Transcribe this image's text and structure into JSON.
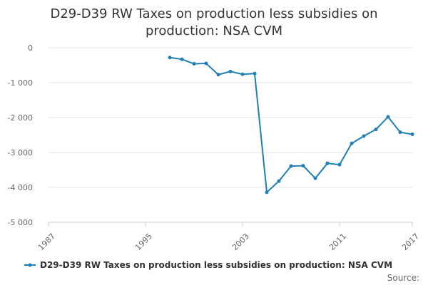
{
  "chart_data": {
    "type": "line",
    "title": "D29-D39 RW Taxes on production less subsidies on production: NSA CVM",
    "xlabel": "",
    "ylabel": "",
    "xlim": [
      1987,
      2017
    ],
    "ylim": [
      -5000,
      0
    ],
    "x_ticks": [
      "1987",
      "1995",
      "2003",
      "2011",
      "2017"
    ],
    "y_ticks": [
      "0",
      "-1 000",
      "-2 000",
      "-3 000",
      "-4 000",
      "-5 000"
    ],
    "y_tick_values": [
      0,
      -1000,
      -2000,
      -3000,
      -4000,
      -5000
    ],
    "x_tick_values": [
      1987,
      1995,
      2003,
      2011,
      2017
    ],
    "grid": true,
    "legend_position": "bottom",
    "series": [
      {
        "name": "D29-D39 RW Taxes on production less subsidies on production: NSA CVM",
        "color": "#1f7fb6",
        "x": [
          1997,
          1998,
          1999,
          2000,
          2001,
          2002,
          2003,
          2004,
          2005,
          2006,
          2007,
          2008,
          2009,
          2010,
          2011,
          2012,
          2013,
          2014,
          2015,
          2016,
          2017
        ],
        "values": [
          -280,
          -330,
          -460,
          -450,
          -770,
          -680,
          -760,
          -740,
          -4140,
          -3820,
          -3390,
          -3380,
          -3740,
          -3310,
          -3350,
          -2740,
          -2530,
          -2340,
          -1980,
          -2420,
          -2480
        ]
      }
    ],
    "source_label": "Source:"
  }
}
